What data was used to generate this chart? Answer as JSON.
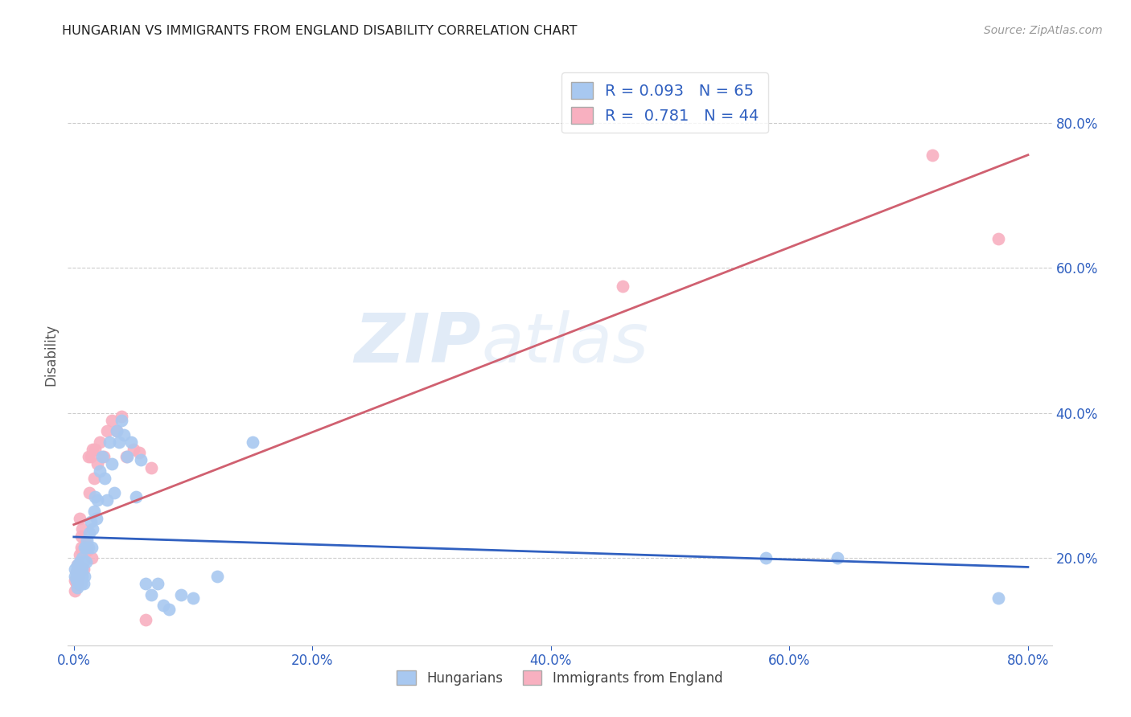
{
  "title": "HUNGARIAN VS IMMIGRANTS FROM ENGLAND DISABILITY CORRELATION CHART",
  "source": "Source: ZipAtlas.com",
  "ylabel": "Disability",
  "xlabel": "",
  "xlim": [
    -0.005,
    0.82
  ],
  "ylim": [
    0.08,
    0.88
  ],
  "xticks": [
    0.0,
    0.2,
    0.4,
    0.6,
    0.8
  ],
  "yticks": [
    0.2,
    0.4,
    0.6,
    0.8
  ],
  "ytick_labels": [
    "20.0%",
    "40.0%",
    "60.0%",
    "80.0%"
  ],
  "xtick_labels": [
    "0.0%",
    "20.0%",
    "40.0%",
    "60.0%",
    "80.0%"
  ],
  "blue_color": "#A8C8F0",
  "pink_color": "#F8B0C0",
  "blue_line_color": "#3060C0",
  "pink_line_color": "#D06070",
  "R_blue": 0.093,
  "N_blue": 65,
  "R_pink": 0.781,
  "N_pink": 44,
  "legend_label_blue": "Hungarians",
  "legend_label_pink": "Immigrants from England",
  "watermark_zip": "ZIP",
  "watermark_atlas": "atlas",
  "blue_scatter_x": [
    0.001,
    0.001,
    0.002,
    0.002,
    0.002,
    0.003,
    0.003,
    0.003,
    0.003,
    0.004,
    0.004,
    0.004,
    0.005,
    0.005,
    0.005,
    0.005,
    0.006,
    0.006,
    0.006,
    0.007,
    0.007,
    0.007,
    0.008,
    0.008,
    0.009,
    0.009,
    0.01,
    0.01,
    0.011,
    0.012,
    0.013,
    0.014,
    0.015,
    0.016,
    0.017,
    0.018,
    0.019,
    0.02,
    0.022,
    0.024,
    0.026,
    0.028,
    0.03,
    0.032,
    0.034,
    0.036,
    0.038,
    0.04,
    0.042,
    0.045,
    0.048,
    0.052,
    0.056,
    0.06,
    0.065,
    0.07,
    0.075,
    0.08,
    0.09,
    0.1,
    0.12,
    0.15,
    0.58,
    0.64,
    0.775
  ],
  "blue_scatter_y": [
    0.185,
    0.175,
    0.17,
    0.175,
    0.18,
    0.16,
    0.175,
    0.185,
    0.19,
    0.165,
    0.175,
    0.185,
    0.165,
    0.175,
    0.185,
    0.195,
    0.165,
    0.175,
    0.185,
    0.175,
    0.185,
    0.2,
    0.165,
    0.195,
    0.175,
    0.215,
    0.195,
    0.215,
    0.225,
    0.215,
    0.235,
    0.25,
    0.215,
    0.24,
    0.265,
    0.285,
    0.255,
    0.28,
    0.32,
    0.34,
    0.31,
    0.28,
    0.36,
    0.33,
    0.29,
    0.375,
    0.36,
    0.39,
    0.37,
    0.34,
    0.36,
    0.285,
    0.335,
    0.165,
    0.15,
    0.165,
    0.135,
    0.13,
    0.15,
    0.145,
    0.175,
    0.36,
    0.2,
    0.2,
    0.145
  ],
  "pink_scatter_x": [
    0.001,
    0.001,
    0.002,
    0.002,
    0.003,
    0.003,
    0.003,
    0.004,
    0.004,
    0.005,
    0.005,
    0.005,
    0.006,
    0.006,
    0.006,
    0.007,
    0.007,
    0.008,
    0.008,
    0.009,
    0.01,
    0.011,
    0.012,
    0.013,
    0.014,
    0.015,
    0.016,
    0.017,
    0.018,
    0.02,
    0.022,
    0.025,
    0.028,
    0.032,
    0.036,
    0.04,
    0.044,
    0.05,
    0.055,
    0.06,
    0.065,
    0.46,
    0.72,
    0.775
  ],
  "pink_scatter_y": [
    0.155,
    0.17,
    0.165,
    0.18,
    0.165,
    0.18,
    0.19,
    0.175,
    0.19,
    0.185,
    0.205,
    0.255,
    0.215,
    0.23,
    0.185,
    0.21,
    0.24,
    0.185,
    0.21,
    0.215,
    0.22,
    0.21,
    0.34,
    0.29,
    0.34,
    0.2,
    0.35,
    0.31,
    0.35,
    0.33,
    0.36,
    0.34,
    0.375,
    0.39,
    0.375,
    0.395,
    0.34,
    0.35,
    0.345,
    0.115,
    0.325,
    0.575,
    0.755,
    0.64
  ]
}
